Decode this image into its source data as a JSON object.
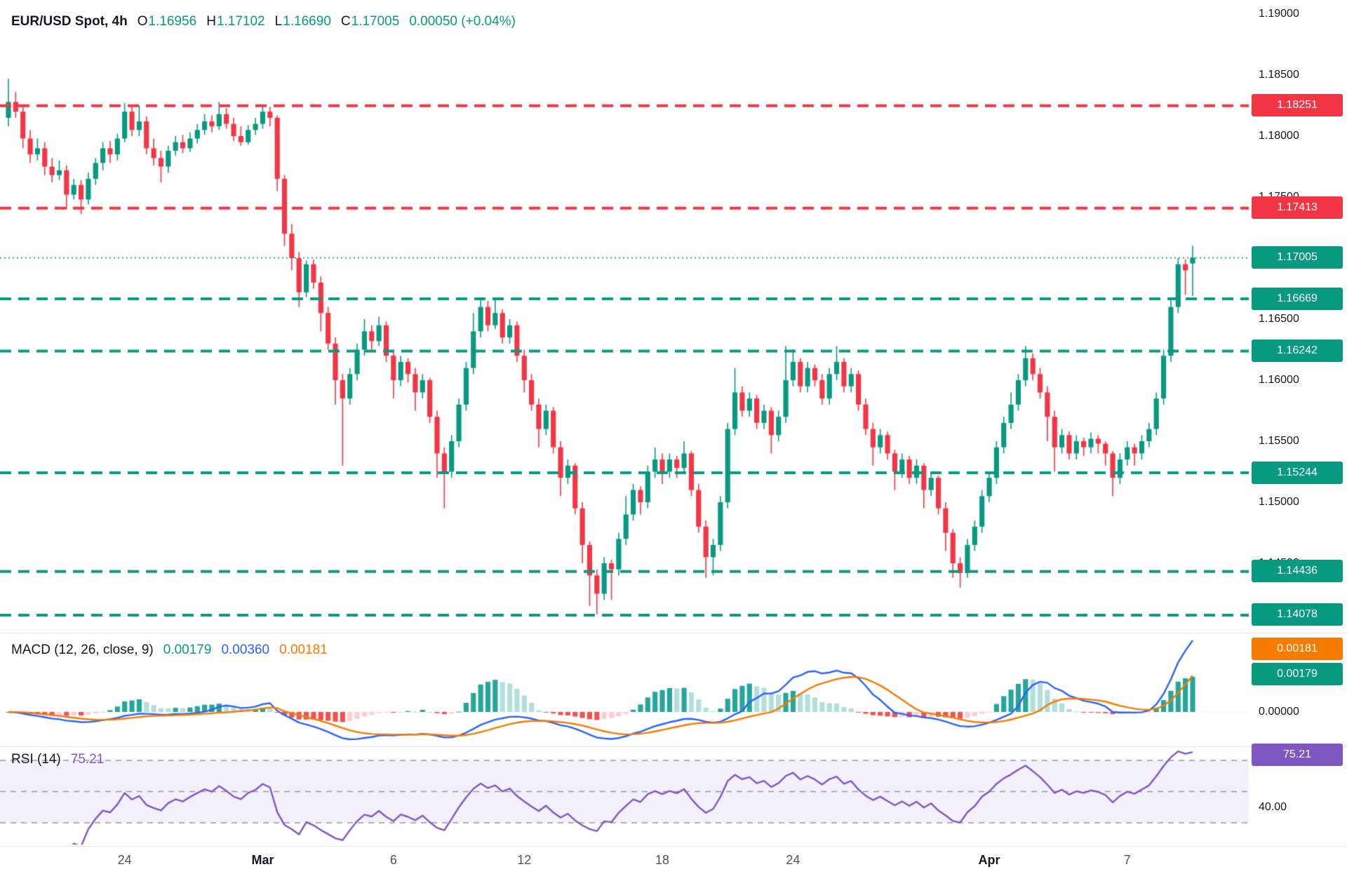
{
  "header": {
    "symbol": "EUR/USD Spot, 4h",
    "ohlc": [
      {
        "k": "O",
        "v": "1.16956"
      },
      {
        "k": "H",
        "v": "1.17102"
      },
      {
        "k": "L",
        "v": "1.16690"
      },
      {
        "k": "C",
        "v": "1.17005"
      }
    ],
    "change": "0.00050 (+0.04%)"
  },
  "macd": {
    "title": "MACD (12, 26, close, 9)",
    "hist": "0.00179",
    "macd_line": "0.00360",
    "signal": "0.00181"
  },
  "rsi": {
    "title": "RSI (14)",
    "value": "75.21"
  },
  "colors": {
    "up": "#089981",
    "down": "#f23645",
    "resistance": "#f23645",
    "support": "#089981",
    "macd_line": "#2962ff",
    "signal_line": "#f57c00",
    "rsi_line": "#7e57c2"
  },
  "price_axis": {
    "ticks": [
      {
        "label": "1.19000",
        "price": 1.19
      },
      {
        "label": "1.18500",
        "price": 1.185
      },
      {
        "label": "1.18000",
        "price": 1.18
      },
      {
        "label": "1.17500",
        "price": 1.175
      },
      {
        "label": "1.17000",
        "price": 1.17
      },
      {
        "label": "1.16500",
        "price": 1.165
      },
      {
        "label": "1.16000",
        "price": 1.16
      },
      {
        "label": "1.15500",
        "price": 1.155
      },
      {
        "label": "1.15000",
        "price": 1.15
      },
      {
        "label": "1.14500",
        "price": 1.145
      }
    ],
    "badges": [
      {
        "label": "1.18251",
        "price": 1.18251,
        "kind": "resistance"
      },
      {
        "label": "1.17413",
        "price": 1.17413,
        "kind": "resistance"
      },
      {
        "label": "1.17005",
        "price": 1.17005,
        "kind": "last"
      },
      {
        "label": "1.16669",
        "price": 1.16669,
        "kind": "support"
      },
      {
        "label": "1.16242",
        "price": 1.16242,
        "kind": "support"
      },
      {
        "label": "1.15244",
        "price": 1.15244,
        "kind": "support"
      },
      {
        "label": "1.14436",
        "price": 1.14436,
        "kind": "support"
      },
      {
        "label": "1.14078",
        "price": 1.14078,
        "kind": "support"
      }
    ]
  },
  "macd_axis": {
    "signal_badge": "0.00181",
    "hist_badge": "0.00179",
    "zero_label": "0.00000"
  },
  "rsi_axis": {
    "value_badge": "75.21",
    "tick_label": "40.00"
  },
  "time_axis": [
    {
      "label": "24",
      "index": 16
    },
    {
      "label": "Mar",
      "index": 35,
      "bold": true
    },
    {
      "label": "6",
      "index": 53
    },
    {
      "label": "12",
      "index": 71
    },
    {
      "label": "18",
      "index": 90
    },
    {
      "label": "24",
      "index": 108
    },
    {
      "label": "Apr",
      "index": 135,
      "bold": true
    },
    {
      "label": "7",
      "index": 154
    }
  ],
  "chart_data": {
    "type": "candlestick",
    "title": "EUR/USD Spot, 4h",
    "timeframe": "4h",
    "last": {
      "open": 1.16956,
      "high": 1.17102,
      "low": 1.1669,
      "close": 1.17005,
      "change": 0.0005,
      "change_pct": 0.04
    },
    "y_axis": {
      "min": 1.1395,
      "max": 1.1905,
      "tick_step": 0.005
    },
    "x_labels": [
      "24",
      "Mar",
      "6",
      "12",
      "18",
      "24",
      "Apr",
      "7"
    ],
    "levels": {
      "resistance": [
        1.18251,
        1.17413
      ],
      "support": [
        1.16669,
        1.16242,
        1.15244,
        1.14436,
        1.14078
      ],
      "last_price": 1.17005
    },
    "indicators": [
      {
        "type": "MACD",
        "params": [
          12,
          26,
          "close",
          9
        ],
        "current": {
          "histogram": 0.00179,
          "macd": 0.0036,
          "signal": 0.00181
        }
      },
      {
        "type": "RSI",
        "params": [
          14
        ],
        "current": 75.21,
        "levels": [
          70,
          50,
          30
        ],
        "visible_tick": 40
      }
    ],
    "candles_ohlc": [
      [
        1.1815,
        1.1847,
        1.1808,
        1.1828
      ],
      [
        1.1828,
        1.1836,
        1.1815,
        1.182
      ],
      [
        1.182,
        1.1826,
        1.179,
        1.1798
      ],
      [
        1.1798,
        1.1805,
        1.1778,
        1.1785
      ],
      [
        1.1785,
        1.1798,
        1.178,
        1.179
      ],
      [
        1.179,
        1.1795,
        1.1768,
        1.1775
      ],
      [
        1.1775,
        1.1782,
        1.1762,
        1.1768
      ],
      [
        1.1768,
        1.178,
        1.1764,
        1.1772
      ],
      [
        1.1772,
        1.1776,
        1.174,
        1.1752
      ],
      [
        1.1752,
        1.1765,
        1.1748,
        1.176
      ],
      [
        1.176,
        1.1764,
        1.1736,
        1.1748
      ],
      [
        1.1748,
        1.177,
        1.1744,
        1.1765
      ],
      [
        1.1765,
        1.1782,
        1.176,
        1.1778
      ],
      [
        1.1778,
        1.1795,
        1.1772,
        1.179
      ],
      [
        1.179,
        1.1796,
        1.1778,
        1.1785
      ],
      [
        1.1785,
        1.1802,
        1.178,
        1.1798
      ],
      [
        1.1798,
        1.1827,
        1.1795,
        1.182
      ],
      [
        1.182,
        1.1825,
        1.18,
        1.1805
      ],
      [
        1.1805,
        1.1825,
        1.18,
        1.1812
      ],
      [
        1.1812,
        1.1816,
        1.1785,
        1.179
      ],
      [
        1.179,
        1.1798,
        1.1776,
        1.1782
      ],
      [
        1.1782,
        1.1788,
        1.1762,
        1.1775
      ],
      [
        1.1775,
        1.1792,
        1.177,
        1.1788
      ],
      [
        1.1788,
        1.18,
        1.1784,
        1.1795
      ],
      [
        1.1795,
        1.1801,
        1.1786,
        1.179
      ],
      [
        1.179,
        1.1803,
        1.1787,
        1.1798
      ],
      [
        1.1798,
        1.181,
        1.1794,
        1.1805
      ],
      [
        1.1805,
        1.1818,
        1.1801,
        1.1812
      ],
      [
        1.1812,
        1.1817,
        1.1803,
        1.1808
      ],
      [
        1.1808,
        1.1828,
        1.1805,
        1.1818
      ],
      [
        1.1818,
        1.1823,
        1.1806,
        1.181
      ],
      [
        1.181,
        1.1815,
        1.1796,
        1.18
      ],
      [
        1.18,
        1.1808,
        1.1792,
        1.1795
      ],
      [
        1.1795,
        1.1809,
        1.1793,
        1.1805
      ],
      [
        1.1805,
        1.1815,
        1.1801,
        1.181
      ],
      [
        1.181,
        1.1826,
        1.1806,
        1.182
      ],
      [
        1.182,
        1.1824,
        1.1808,
        1.1815
      ],
      [
        1.1815,
        1.1817,
        1.1755,
        1.1765
      ],
      [
        1.1765,
        1.1768,
        1.171,
        1.172
      ],
      [
        1.172,
        1.1728,
        1.169,
        1.17
      ],
      [
        1.17,
        1.1705,
        1.166,
        1.1672
      ],
      [
        1.1672,
        1.1698,
        1.1668,
        1.1695
      ],
      [
        1.1695,
        1.1699,
        1.1675,
        1.168
      ],
      [
        1.168,
        1.1685,
        1.164,
        1.1655
      ],
      [
        1.1655,
        1.166,
        1.1625,
        1.163
      ],
      [
        1.163,
        1.1635,
        1.158,
        1.16
      ],
      [
        1.16,
        1.1605,
        1.153,
        1.1585
      ],
      [
        1.1585,
        1.161,
        1.158,
        1.1605
      ],
      [
        1.1605,
        1.163,
        1.16,
        1.1625
      ],
      [
        1.1625,
        1.165,
        1.162,
        1.164
      ],
      [
        1.164,
        1.1645,
        1.1625,
        1.1632
      ],
      [
        1.1632,
        1.1652,
        1.1628,
        1.1645
      ],
      [
        1.1645,
        1.1648,
        1.1615,
        1.162
      ],
      [
        1.162,
        1.1625,
        1.1585,
        1.16
      ],
      [
        1.16,
        1.162,
        1.1595,
        1.1615
      ],
      [
        1.1615,
        1.1618,
        1.1598,
        1.1605
      ],
      [
        1.1605,
        1.161,
        1.1575,
        1.159
      ],
      [
        1.159,
        1.1605,
        1.1585,
        1.16
      ],
      [
        1.16,
        1.1602,
        1.1565,
        1.157
      ],
      [
        1.157,
        1.1575,
        1.152,
        1.154
      ],
      [
        1.154,
        1.1545,
        1.1495,
        1.1525
      ],
      [
        1.1525,
        1.1555,
        1.152,
        1.155
      ],
      [
        1.155,
        1.1585,
        1.1545,
        1.158
      ],
      [
        1.158,
        1.1615,
        1.1575,
        1.161
      ],
      [
        1.161,
        1.1655,
        1.1605,
        1.164
      ],
      [
        1.164,
        1.1667,
        1.1635,
        1.166
      ],
      [
        1.166,
        1.1665,
        1.164,
        1.1645
      ],
      [
        1.1645,
        1.1666,
        1.1642,
        1.1655
      ],
      [
        1.1655,
        1.1658,
        1.163,
        1.1635
      ],
      [
        1.1635,
        1.165,
        1.163,
        1.1645
      ],
      [
        1.1645,
        1.1648,
        1.1615,
        1.162
      ],
      [
        1.162,
        1.1625,
        1.159,
        1.16
      ],
      [
        1.16,
        1.1605,
        1.1575,
        1.158
      ],
      [
        1.158,
        1.1585,
        1.1545,
        1.156
      ],
      [
        1.156,
        1.158,
        1.1555,
        1.1575
      ],
      [
        1.1575,
        1.1578,
        1.154,
        1.1545
      ],
      [
        1.1545,
        1.155,
        1.1505,
        1.152
      ],
      [
        1.152,
        1.1535,
        1.1515,
        1.153
      ],
      [
        1.153,
        1.1532,
        1.149,
        1.1495
      ],
      [
        1.1495,
        1.15,
        1.145,
        1.1465
      ],
      [
        1.1465,
        1.1468,
        1.1415,
        1.144
      ],
      [
        1.144,
        1.1445,
        1.1408,
        1.1425
      ],
      [
        1.1425,
        1.1455,
        1.142,
        1.145
      ],
      [
        1.145,
        1.1453,
        1.142,
        1.1445
      ],
      [
        1.1445,
        1.1475,
        1.144,
        1.147
      ],
      [
        1.147,
        1.1505,
        1.1465,
        1.149
      ],
      [
        1.149,
        1.1515,
        1.1485,
        1.151
      ],
      [
        1.151,
        1.1513,
        1.149,
        1.15
      ],
      [
        1.15,
        1.153,
        1.1495,
        1.1525
      ],
      [
        1.1525,
        1.1545,
        1.152,
        1.1535
      ],
      [
        1.1535,
        1.154,
        1.1515,
        1.1525
      ],
      [
        1.1525,
        1.154,
        1.152,
        1.1535
      ],
      [
        1.1535,
        1.1538,
        1.152,
        1.1528
      ],
      [
        1.1528,
        1.155,
        1.1525,
        1.154
      ],
      [
        1.154,
        1.1542,
        1.1505,
        1.151
      ],
      [
        1.151,
        1.1515,
        1.1475,
        1.148
      ],
      [
        1.148,
        1.1485,
        1.1438,
        1.1455
      ],
      [
        1.1455,
        1.147,
        1.144,
        1.1465
      ],
      [
        1.1465,
        1.1505,
        1.146,
        1.15
      ],
      [
        1.15,
        1.1565,
        1.1495,
        1.156
      ],
      [
        1.156,
        1.161,
        1.1555,
        1.159
      ],
      [
        1.159,
        1.1595,
        1.157,
        1.1575
      ],
      [
        1.1575,
        1.159,
        1.157,
        1.1585
      ],
      [
        1.1585,
        1.1588,
        1.156,
        1.1565
      ],
      [
        1.1565,
        1.158,
        1.156,
        1.1575
      ],
      [
        1.1575,
        1.1578,
        1.154,
        1.1555
      ],
      [
        1.1555,
        1.1575,
        1.155,
        1.157
      ],
      [
        1.157,
        1.1628,
        1.1565,
        1.16
      ],
      [
        1.16,
        1.1625,
        1.1595,
        1.1615
      ],
      [
        1.1615,
        1.1618,
        1.159,
        1.1595
      ],
      [
        1.1595,
        1.1615,
        1.159,
        1.161
      ],
      [
        1.161,
        1.1613,
        1.1595,
        1.16
      ],
      [
        1.16,
        1.1605,
        1.158,
        1.1585
      ],
      [
        1.1585,
        1.161,
        1.158,
        1.1605
      ],
      [
        1.1605,
        1.1628,
        1.16,
        1.1615
      ],
      [
        1.1615,
        1.1618,
        1.159,
        1.1595
      ],
      [
        1.1595,
        1.161,
        1.159,
        1.1605
      ],
      [
        1.1605,
        1.1608,
        1.1575,
        1.158
      ],
      [
        1.158,
        1.1585,
        1.1555,
        1.156
      ],
      [
        1.156,
        1.1565,
        1.153,
        1.1545
      ],
      [
        1.1545,
        1.156,
        1.154,
        1.1555
      ],
      [
        1.1555,
        1.1558,
        1.1535,
        1.154
      ],
      [
        1.154,
        1.1543,
        1.151,
        1.1525
      ],
      [
        1.1525,
        1.154,
        1.152,
        1.1535
      ],
      [
        1.1535,
        1.1538,
        1.1515,
        1.152
      ],
      [
        1.152,
        1.1535,
        1.1515,
        1.153
      ],
      [
        1.153,
        1.1532,
        1.1495,
        1.151
      ],
      [
        1.151,
        1.1525,
        1.1505,
        1.152
      ],
      [
        1.152,
        1.1522,
        1.149,
        1.1495
      ],
      [
        1.1495,
        1.15,
        1.146,
        1.1475
      ],
      [
        1.1475,
        1.1478,
        1.1438,
        1.145
      ],
      [
        1.145,
        1.1455,
        1.143,
        1.1442
      ],
      [
        1.1442,
        1.147,
        1.1438,
        1.1465
      ],
      [
        1.1465,
        1.1485,
        1.146,
        1.148
      ],
      [
        1.148,
        1.151,
        1.1475,
        1.1505
      ],
      [
        1.1505,
        1.1525,
        1.15,
        1.152
      ],
      [
        1.152,
        1.155,
        1.1515,
        1.1545
      ],
      [
        1.1545,
        1.157,
        1.154,
        1.1565
      ],
      [
        1.1565,
        1.159,
        1.156,
        1.158
      ],
      [
        1.158,
        1.1605,
        1.1575,
        1.16
      ],
      [
        1.16,
        1.1628,
        1.1595,
        1.1618
      ],
      [
        1.1618,
        1.1622,
        1.16,
        1.1605
      ],
      [
        1.1605,
        1.161,
        1.1585,
        1.159
      ],
      [
        1.159,
        1.1595,
        1.155,
        1.157
      ],
      [
        1.157,
        1.1575,
        1.1525,
        1.1545
      ],
      [
        1.1545,
        1.156,
        1.154,
        1.1555
      ],
      [
        1.1555,
        1.1558,
        1.1535,
        1.154
      ],
      [
        1.154,
        1.1555,
        1.1535,
        1.155
      ],
      [
        1.155,
        1.1553,
        1.1538,
        1.1545
      ],
      [
        1.1545,
        1.1557,
        1.154,
        1.1552
      ],
      [
        1.1552,
        1.1555,
        1.154,
        1.1548
      ],
      [
        1.1548,
        1.155,
        1.153,
        1.154
      ],
      [
        1.154,
        1.1542,
        1.1505,
        1.152
      ],
      [
        1.152,
        1.154,
        1.1515,
        1.1535
      ],
      [
        1.1535,
        1.155,
        1.153,
        1.1545
      ],
      [
        1.1545,
        1.1548,
        1.153,
        1.154
      ],
      [
        1.154,
        1.1555,
        1.1535,
        1.155
      ],
      [
        1.155,
        1.1565,
        1.1545,
        1.156
      ],
      [
        1.156,
        1.159,
        1.1555,
        1.1585
      ],
      [
        1.1585,
        1.1625,
        1.158,
        1.162
      ],
      [
        1.162,
        1.1668,
        1.1615,
        1.166
      ],
      [
        1.166,
        1.17,
        1.1655,
        1.1695
      ],
      [
        1.1695,
        1.1699,
        1.167,
        1.169
      ],
      [
        1.16956,
        1.17102,
        1.1669,
        1.17005
      ]
    ]
  }
}
